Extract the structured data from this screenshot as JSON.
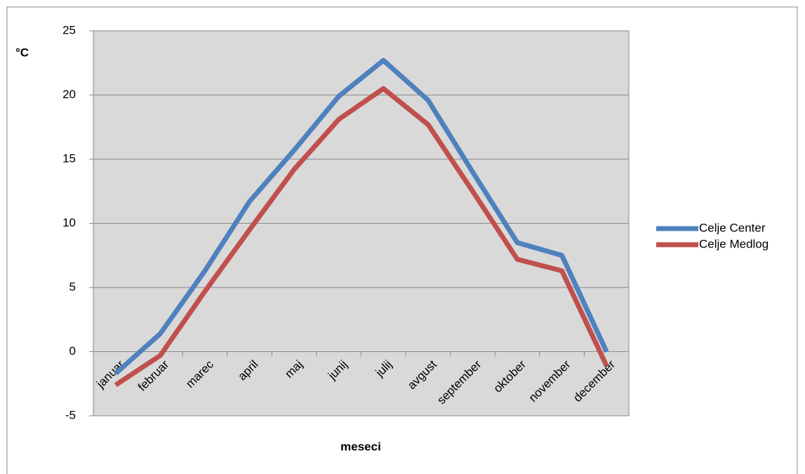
{
  "chart_data": {
    "type": "line",
    "y_label": "°C",
    "x_label": "meseci",
    "categories": [
      "januar",
      "februar",
      "marec",
      "april",
      "maj",
      "junij",
      "julij",
      "avgust",
      "september",
      "oktober",
      "november",
      "december"
    ],
    "series": [
      {
        "name": "Celje Center",
        "color": "#4f81bd",
        "values": [
          -1.7,
          1.4,
          6.3,
          11.7,
          15.7,
          19.9,
          22.7,
          19.6,
          14.0,
          8.5,
          7.5,
          0.0
        ]
      },
      {
        "name": "Celje Medlog",
        "color": "#c0504d",
        "values": [
          -2.6,
          -0.3,
          4.7,
          9.5,
          14.2,
          18.1,
          20.5,
          17.7,
          12.5,
          7.2,
          6.3,
          -1.1
        ]
      }
    ],
    "ylim": [
      -5,
      25
    ],
    "yticks": [
      -5,
      0,
      5,
      10,
      15,
      20,
      25
    ],
    "grid": true,
    "legend": "right"
  }
}
